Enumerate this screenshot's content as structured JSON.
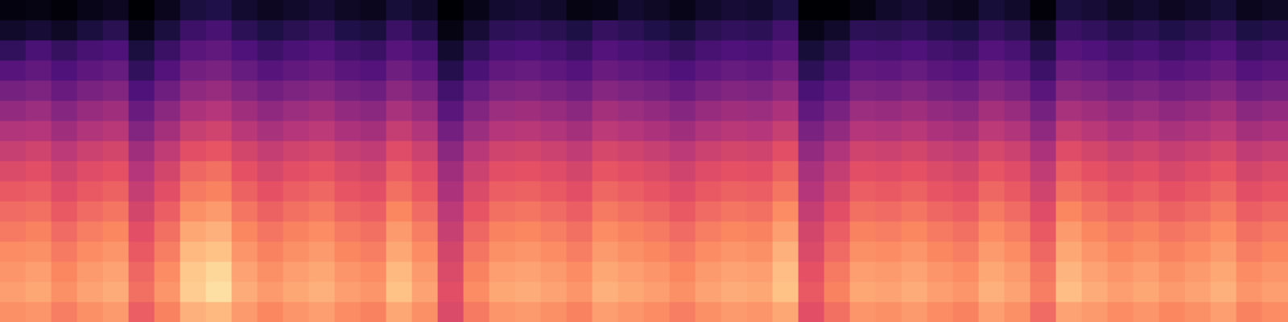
{
  "chart_data": {
    "type": "heatmap",
    "color": "magma",
    "grid": false,
    "tick_labels": false,
    "clim": [
      0,
      100
    ],
    "cells": [
      [
        2,
        3,
        1,
        4,
        6,
        0,
        5,
        12,
        14,
        9,
        6,
        8,
        10,
        7,
        5,
        11,
        8,
        0,
        4,
        9,
        10,
        8,
        3,
        4,
        9,
        7,
        4,
        8,
        10,
        9,
        13,
        0,
        0,
        3,
        8,
        10,
        7,
        5,
        11,
        8,
        1,
        12,
        10,
        7,
        9,
        6,
        8,
        11,
        5,
        7
      ],
      [
        8,
        10,
        7,
        12,
        16,
        4,
        12,
        21,
        23,
        17,
        13,
        16,
        19,
        14,
        12,
        20,
        15,
        3,
        10,
        17,
        18,
        16,
        13,
        19,
        17,
        14,
        11,
        16,
        18,
        17,
        22,
        4,
        8,
        17,
        16,
        18,
        15,
        13,
        19,
        16,
        7,
        20,
        18,
        15,
        17,
        14,
        16,
        19,
        13,
        15
      ],
      [
        18,
        24,
        19,
        23,
        25,
        12,
        20,
        28,
        30,
        25,
        21,
        24,
        26,
        22,
        20,
        27,
        23,
        9,
        18,
        24,
        25,
        23,
        20,
        26,
        24,
        22,
        19,
        23,
        25,
        24,
        28,
        11,
        16,
        24,
        23,
        25,
        22,
        20,
        26,
        23,
        15,
        27,
        25,
        22,
        24,
        21,
        23,
        26,
        20,
        22
      ],
      [
        27,
        30,
        25,
        29,
        31,
        18,
        26,
        34,
        36,
        31,
        27,
        30,
        32,
        28,
        26,
        33,
        29,
        15,
        24,
        30,
        31,
        29,
        26,
        32,
        30,
        28,
        25,
        29,
        31,
        30,
        34,
        17,
        22,
        30,
        29,
        31,
        28,
        26,
        32,
        29,
        21,
        33,
        31,
        28,
        30,
        27,
        29,
        32,
        26,
        28
      ],
      [
        35,
        37,
        32,
        36,
        38,
        25,
        33,
        41,
        43,
        38,
        34,
        37,
        39,
        35,
        33,
        40,
        36,
        22,
        31,
        37,
        38,
        36,
        33,
        39,
        37,
        35,
        32,
        36,
        38,
        37,
        41,
        24,
        29,
        37,
        36,
        38,
        35,
        33,
        39,
        36,
        28,
        40,
        38,
        35,
        37,
        34,
        36,
        39,
        33,
        35
      ],
      [
        42,
        44,
        39,
        43,
        45,
        32,
        40,
        48,
        50,
        45,
        41,
        44,
        46,
        42,
        40,
        47,
        43,
        28,
        38,
        44,
        45,
        43,
        40,
        46,
        44,
        42,
        39,
        43,
        45,
        44,
        48,
        30,
        36,
        44,
        43,
        45,
        42,
        40,
        46,
        43,
        35,
        47,
        45,
        42,
        44,
        41,
        43,
        46,
        40,
        42
      ],
      [
        49,
        50,
        45,
        49,
        51,
        38,
        46,
        55,
        57,
        51,
        47,
        50,
        52,
        48,
        46,
        54,
        49,
        34,
        44,
        50,
        51,
        49,
        46,
        52,
        50,
        48,
        45,
        49,
        51,
        50,
        55,
        36,
        42,
        50,
        49,
        51,
        48,
        46,
        52,
        49,
        41,
        54,
        51,
        48,
        50,
        47,
        49,
        52,
        46,
        48
      ],
      [
        55,
        57,
        52,
        56,
        58,
        45,
        53,
        62,
        64,
        58,
        54,
        57,
        59,
        55,
        53,
        61,
        56,
        40,
        51,
        57,
        58,
        56,
        53,
        59,
        57,
        55,
        52,
        56,
        58,
        57,
        62,
        42,
        49,
        57,
        56,
        58,
        55,
        53,
        59,
        56,
        48,
        61,
        58,
        55,
        57,
        54,
        56,
        59,
        53,
        55
      ],
      [
        60,
        62,
        57,
        61,
        63,
        50,
        58,
        68,
        70,
        63,
        59,
        62,
        64,
        60,
        58,
        66,
        61,
        45,
        56,
        62,
        63,
        61,
        58,
        64,
        62,
        60,
        57,
        61,
        63,
        62,
        67,
        47,
        54,
        62,
        61,
        63,
        60,
        58,
        64,
        61,
        53,
        66,
        63,
        60,
        62,
        59,
        61,
        64,
        58,
        60
      ],
      [
        65,
        66,
        61,
        65,
        67,
        54,
        62,
        72,
        74,
        67,
        63,
        66,
        68,
        64,
        62,
        70,
        65,
        48,
        60,
        66,
        67,
        65,
        62,
        68,
        66,
        64,
        61,
        65,
        67,
        66,
        71,
        50,
        58,
        66,
        65,
        67,
        64,
        62,
        68,
        65,
        57,
        70,
        67,
        64,
        66,
        63,
        65,
        68,
        62,
        64
      ],
      [
        69,
        70,
        65,
        69,
        71,
        58,
        66,
        77,
        79,
        71,
        67,
        70,
        72,
        68,
        66,
        75,
        69,
        52,
        64,
        70,
        71,
        69,
        66,
        72,
        70,
        68,
        65,
        69,
        71,
        70,
        76,
        54,
        62,
        70,
        69,
        71,
        68,
        66,
        72,
        69,
        61,
        75,
        71,
        68,
        70,
        67,
        69,
        72,
        66,
        68
      ],
      [
        72,
        74,
        69,
        73,
        75,
        62,
        70,
        82,
        84,
        75,
        71,
        74,
        76,
        72,
        70,
        79,
        73,
        55,
        68,
        74,
        75,
        73,
        70,
        76,
        74,
        72,
        69,
        73,
        75,
        74,
        80,
        58,
        66,
        74,
        73,
        75,
        72,
        70,
        76,
        73,
        65,
        79,
        75,
        72,
        74,
        71,
        73,
        76,
        70,
        72
      ],
      [
        76,
        77,
        72,
        76,
        78,
        65,
        73,
        86,
        88,
        78,
        74,
        77,
        79,
        75,
        73,
        82,
        76,
        58,
        71,
        77,
        78,
        76,
        73,
        79,
        77,
        75,
        72,
        76,
        78,
        77,
        84,
        60,
        69,
        77,
        76,
        78,
        75,
        73,
        79,
        76,
        68,
        82,
        78,
        75,
        77,
        74,
        76,
        79,
        73,
        75
      ],
      [
        78,
        80,
        75,
        79,
        81,
        68,
        76,
        89,
        92,
        81,
        77,
        80,
        82,
        78,
        76,
        86,
        79,
        60,
        74,
        80,
        81,
        79,
        76,
        82,
        80,
        78,
        75,
        79,
        81,
        80,
        87,
        63,
        72,
        80,
        79,
        81,
        78,
        76,
        82,
        79,
        71,
        85,
        81,
        78,
        80,
        77,
        79,
        82,
        76,
        78
      ],
      [
        80,
        82,
        77,
        81,
        83,
        70,
        78,
        90,
        94,
        83,
        79,
        82,
        84,
        80,
        78,
        88,
        81,
        62,
        76,
        82,
        83,
        81,
        78,
        84,
        82,
        80,
        77,
        81,
        83,
        82,
        88,
        65,
        74,
        82,
        81,
        83,
        80,
        78,
        84,
        81,
        73,
        87,
        83,
        80,
        82,
        79,
        81,
        84,
        78,
        80
      ],
      [
        77,
        78,
        73,
        77,
        79,
        66,
        74,
        84,
        86,
        79,
        75,
        78,
        80,
        76,
        74,
        82,
        77,
        60,
        72,
        78,
        79,
        77,
        74,
        80,
        78,
        76,
        73,
        77,
        79,
        78,
        82,
        62,
        70,
        78,
        77,
        79,
        76,
        74,
        80,
        77,
        69,
        81,
        79,
        76,
        78,
        75,
        77,
        80,
        74,
        76
      ]
    ]
  }
}
